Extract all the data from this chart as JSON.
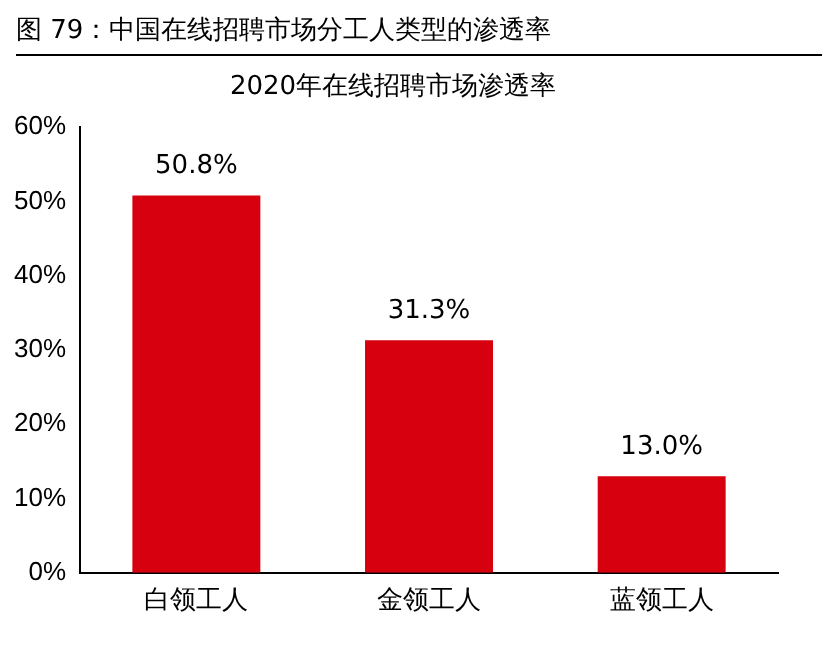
{
  "chart_data": {
    "type": "bar",
    "title": "图 79：中国在线招聘市场分工人类型的渗透率",
    "subtitle": "2020年在线招聘市场渗透率",
    "categories": [
      "白领工人",
      "金领工人",
      "蓝领工人"
    ],
    "values": [
      50.8,
      31.3,
      13.0
    ],
    "value_labels": [
      "50.8%",
      "31.3%",
      "13.0%"
    ],
    "color": "#d7000f",
    "ylim": [
      0,
      60
    ],
    "yticks": [
      {
        "value": 0,
        "label": "0%"
      },
      {
        "value": 10,
        "label": "10%"
      },
      {
        "value": 20,
        "label": "20%"
      },
      {
        "value": 30,
        "label": "30%"
      },
      {
        "value": 40,
        "label": "40%"
      },
      {
        "value": 50,
        "label": "50%"
      },
      {
        "value": 60,
        "label": "60%"
      }
    ],
    "grid": false,
    "legend": false
  }
}
